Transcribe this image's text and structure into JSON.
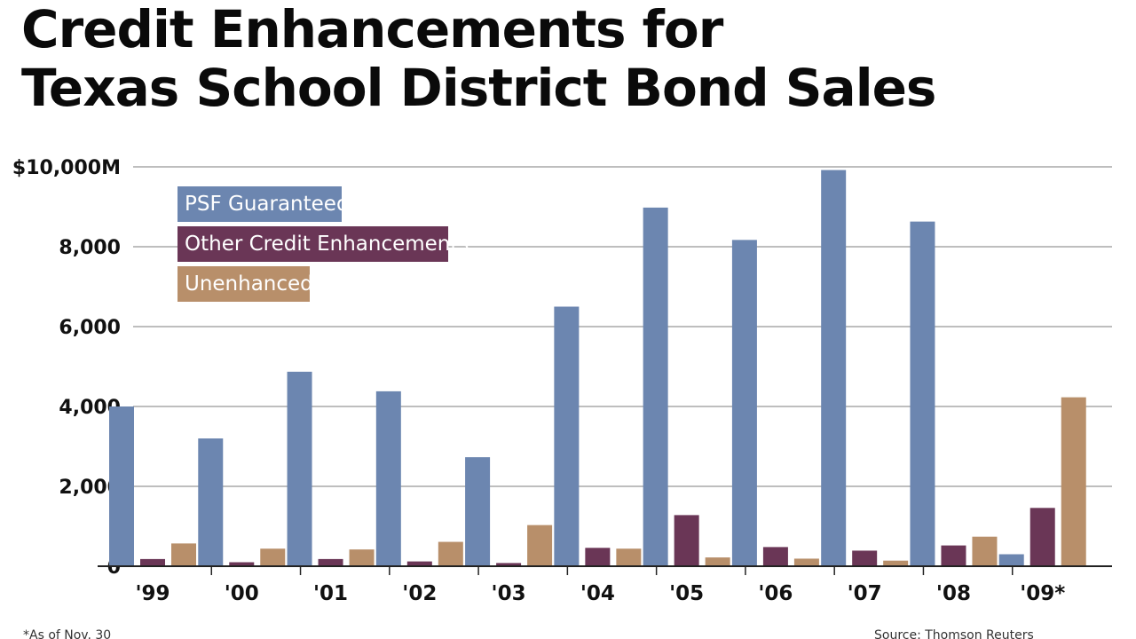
{
  "title_lines": [
    "Credit Enhancements for",
    "Texas School District Bond Sales"
  ],
  "colors": {
    "psf": "#6c86b0",
    "other": "#6a3656",
    "unenhanced": "#b88f6a",
    "grid": "#a9a9a9",
    "axis": "#222222"
  },
  "footnote": "*As of Nov. 30",
  "source": "Source: Thomson Reuters",
  "chart_data": {
    "type": "bar",
    "title": "Credit Enhancements for Texas School District Bond Sales",
    "categories": [
      "'99",
      "'00",
      "'01",
      "'02",
      "'03",
      "'04",
      "'05",
      "'06",
      "'07",
      "'08",
      "'09*"
    ],
    "series": [
      {
        "name": "PSF Guaranteed",
        "values": [
          4000,
          3200,
          4870,
          4380,
          2730,
          6500,
          8980,
          8170,
          9920,
          8630,
          300
        ]
      },
      {
        "name": "Other Credit Enhancements",
        "values": [
          180,
          100,
          180,
          120,
          80,
          460,
          1280,
          480,
          390,
          520,
          1460
        ]
      },
      {
        "name": "Unenhanced",
        "values": [
          570,
          440,
          420,
          610,
          1030,
          440,
          220,
          190,
          140,
          740,
          4230
        ]
      }
    ],
    "y_ticks": [
      0,
      2000,
      4000,
      6000,
      8000,
      10000
    ],
    "y_tick_labels": [
      "0",
      "2,000",
      "4,000",
      "6,000",
      "8,000",
      "$10,000M"
    ],
    "ylim": [
      0,
      10000
    ],
    "grid": true,
    "legend_position": "top-left"
  }
}
